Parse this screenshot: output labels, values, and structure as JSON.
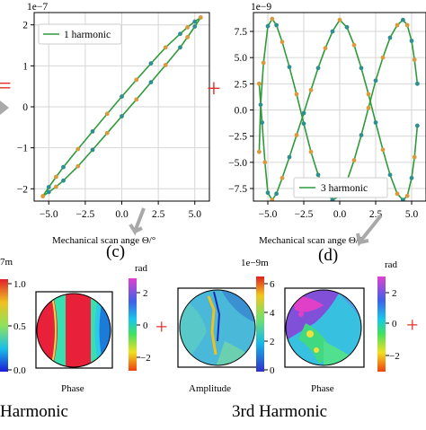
{
  "colors": {
    "line": "#2e9a3a",
    "marker_orange": "#d89a3a",
    "marker_teal": "#2f8f8f",
    "red_sign": "#e0302a",
    "arrow": "#a9a9a9"
  },
  "chart_data": [
    {
      "id": "left",
      "type": "line",
      "exponent": "1e−7",
      "legend": [
        "1 harmonic"
      ],
      "legend_position": "top-left",
      "grid": true,
      "xlabel": "Mechanical scan ange Θ/°",
      "xlim": [
        -6,
        6
      ],
      "ylim": [
        -2.3,
        2.3
      ],
      "xticks": [
        "−5.0",
        "−2.5",
        "0.0",
        "2.5",
        "5.0"
      ],
      "yticks": [
        "−2",
        "−1",
        "0",
        "1",
        "2"
      ],
      "series": [
        {
          "x": [
            -5.4,
            -5.0,
            -4.5,
            -4.0,
            -3.0,
            -2.0,
            -1.0,
            0.0,
            1.0,
            2.0,
            3.0,
            4.0,
            4.5,
            5.0,
            5.4
          ],
          "y": [
            -2.18,
            -1.96,
            -1.71,
            -1.47,
            -1.03,
            -0.6,
            -0.17,
            0.25,
            0.66,
            1.06,
            1.45,
            1.78,
            1.94,
            2.08,
            2.18
          ]
        },
        {
          "x": [
            -5.4,
            -5.0,
            -4.5,
            -4.0,
            -3.0,
            -2.0,
            -1.0,
            0.0,
            1.0,
            2.0,
            3.0,
            4.0,
            4.5,
            5.0,
            5.4
          ],
          "y": [
            -2.18,
            -2.08,
            -1.95,
            -1.8,
            -1.45,
            -1.05,
            -0.64,
            -0.23,
            0.18,
            0.6,
            1.02,
            1.45,
            1.7,
            1.96,
            2.18
          ]
        }
      ]
    },
    {
      "id": "right",
      "type": "line",
      "exponent": "1e−9",
      "legend": [
        "3 harmonic"
      ],
      "legend_position": "bottom-center",
      "grid": true,
      "xlabel": "Mechanical scan ange Θ/°",
      "xlim": [
        -6,
        6
      ],
      "ylim": [
        -8.7,
        9.3
      ],
      "xticks": [
        "−5.0",
        "−2.5",
        "0.0",
        "2.5",
        "5.0"
      ],
      "yticks": [
        "7.5",
        "5.0",
        "2.5",
        "0.0",
        "−2.5",
        "−5.0",
        "−7.5"
      ],
      "series": [
        {
          "x": [
            -5.6,
            -5.4,
            -5.2,
            -5.0,
            -4.7,
            -4.4,
            -4.0,
            -3.5,
            -3.0,
            -2.5,
            -2.0,
            -1.5,
            -1.0,
            -0.5,
            0.0,
            0.5,
            1.0,
            1.5,
            2.0,
            2.5,
            3.0,
            3.5,
            4.0,
            4.4,
            4.7,
            5.0,
            5.2,
            5.4
          ],
          "y": [
            2.5,
            -1.2,
            -5.0,
            -7.9,
            -8.6,
            -8.0,
            -6.5,
            -4.5,
            -2.4,
            -0.3,
            1.9,
            4.0,
            5.9,
            7.5,
            8.6,
            7.9,
            6.2,
            4.0,
            1.5,
            -1.2,
            -3.8,
            -6.2,
            -8.0,
            -8.6,
            -8.2,
            -6.5,
            -4.5,
            -1.5
          ]
        },
        {
          "x": [
            -5.6,
            -5.5,
            -5.3,
            -5.0,
            -4.7,
            -4.4,
            -4.0,
            -3.5,
            -3.0,
            -2.5,
            -2.0,
            -1.5,
            -1.0,
            -0.5,
            0.0,
            0.5,
            1.0,
            1.5,
            2.0,
            2.5,
            3.0,
            3.5,
            4.0,
            4.4,
            4.7,
            5.0,
            5.2,
            5.4
          ],
          "y": [
            -4.0,
            0.5,
            4.5,
            8.0,
            8.7,
            8.1,
            6.5,
            4.1,
            1.5,
            -1.3,
            -4.0,
            -6.2,
            -7.8,
            -8.6,
            -8.2,
            -6.8,
            -4.8,
            -2.4,
            0.2,
            2.8,
            5.0,
            6.9,
            8.1,
            8.6,
            8.1,
            6.6,
            4.8,
            2.5
          ]
        }
      ]
    }
  ],
  "labels": {
    "c": "(c)",
    "d": "(d)"
  },
  "bottom": {
    "unit_left": "7m",
    "cb1": {
      "ticks": [
        "1.0",
        "0.5",
        "0.0"
      ]
    },
    "cb2": {
      "unit": "rad",
      "ticks": [
        "2",
        "0",
        "−2"
      ]
    },
    "cb3": {
      "unit": "1e−9m",
      "ticks": [
        "6",
        "4",
        "2",
        "0"
      ]
    },
    "cb4": {
      "unit": "rad",
      "ticks": [
        "2",
        "0",
        "−2"
      ]
    },
    "phase1": "Phase",
    "amplitude": "Amplitude",
    "phase2": "Phase",
    "harmonic_left": "Harmonic",
    "harmonic_3rd": "3rd Harmonic"
  },
  "signs": {
    "eq": "=",
    "plus": "+"
  }
}
